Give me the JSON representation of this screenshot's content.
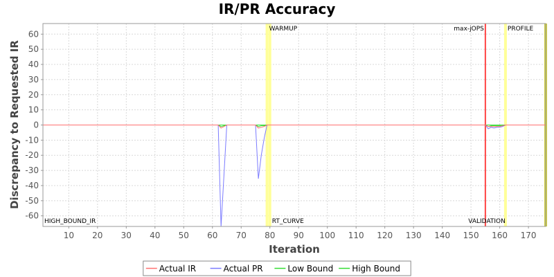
{
  "chart_data": {
    "type": "line",
    "title": "IR/PR Accuracy",
    "xlabel": "Iteration",
    "ylabel": "Discrepancy to Requested IR",
    "xlim": [
      1,
      176
    ],
    "ylim": [
      -67,
      67
    ],
    "xticks": [
      10,
      20,
      30,
      40,
      50,
      60,
      70,
      80,
      90,
      100,
      110,
      120,
      130,
      140,
      150,
      160,
      170
    ],
    "yticks": [
      60,
      50,
      40,
      30,
      20,
      10,
      0,
      -10,
      -20,
      -30,
      -40,
      -50,
      -60
    ],
    "grid": true,
    "legend_position": "bottom",
    "background": "#ffffff",
    "plot_border": "#999999",
    "zero_line_color": "#8b3a3a",
    "series": [
      {
        "name": "Actual IR",
        "color": "#ff7070",
        "points": [
          [
            1,
            0
          ],
          [
            62,
            0
          ],
          [
            63,
            -2
          ],
          [
            64,
            -1
          ],
          [
            65,
            0
          ],
          [
            75,
            0
          ],
          [
            76,
            -2
          ],
          [
            77,
            -1.5
          ],
          [
            78,
            -1
          ],
          [
            79,
            0
          ],
          [
            155,
            0
          ],
          [
            156,
            -1
          ],
          [
            157,
            -1
          ],
          [
            158,
            -1
          ],
          [
            159,
            -1
          ],
          [
            160,
            -1
          ],
          [
            161,
            -0.5
          ],
          [
            162,
            0
          ],
          [
            176,
            0
          ]
        ]
      },
      {
        "name": "Actual PR",
        "color": "#7b7bff",
        "points": [
          [
            1,
            0
          ],
          [
            62,
            0
          ],
          [
            63,
            -67
          ],
          [
            65,
            0
          ],
          [
            75,
            0
          ],
          [
            76,
            -35.5
          ],
          [
            77,
            -20
          ],
          [
            78,
            -9
          ],
          [
            79,
            0
          ],
          [
            155,
            0
          ],
          [
            156,
            -2.5
          ],
          [
            157,
            -1.5
          ],
          [
            158,
            -2
          ],
          [
            159,
            -1.5
          ],
          [
            160,
            -1.5
          ],
          [
            161,
            -1
          ],
          [
            162,
            0
          ],
          [
            176,
            0
          ]
        ]
      },
      {
        "name": "Low Bound",
        "color": "#33dd33",
        "points": [
          [
            1,
            0
          ],
          [
            62,
            0
          ],
          [
            63,
            -1
          ],
          [
            64,
            -0.5
          ],
          [
            65,
            0
          ],
          [
            75,
            0
          ],
          [
            76,
            -1
          ],
          [
            77,
            -0.5
          ],
          [
            78,
            -0.5
          ],
          [
            79,
            0
          ],
          [
            155,
            0
          ],
          [
            156,
            -1
          ],
          [
            157,
            -0.5
          ],
          [
            158,
            -0.5
          ],
          [
            159,
            -0.5
          ],
          [
            160,
            -0.5
          ],
          [
            161,
            -0.5
          ],
          [
            162,
            0
          ],
          [
            176,
            0
          ]
        ]
      },
      {
        "name": "High Bound",
        "color": "#33dd33",
        "points": [
          [
            1,
            0
          ],
          [
            176,
            0
          ]
        ]
      }
    ],
    "markers": [
      {
        "x": 79,
        "label": "WARMUP",
        "position": "top",
        "color": "#ffff99"
      },
      {
        "x": 80,
        "label": "RT_CURVE",
        "position": "bottom",
        "color": "#ffff99"
      },
      {
        "x": 155,
        "label": "max-jOPS",
        "position": "top-left",
        "color": "#ff4444"
      },
      {
        "x": 155,
        "label": "VALIDATION",
        "position": "bottom-left",
        "color": "#ff4444"
      },
      {
        "x": 162,
        "label": "PROFILE",
        "position": "top",
        "color": "#ffff99"
      },
      {
        "x": 176,
        "label": "",
        "position": "none",
        "color": "#cccc44"
      }
    ],
    "corner_labels": [
      {
        "label": "HIGH_BOUND_IR",
        "position": "bottom-left"
      }
    ]
  }
}
